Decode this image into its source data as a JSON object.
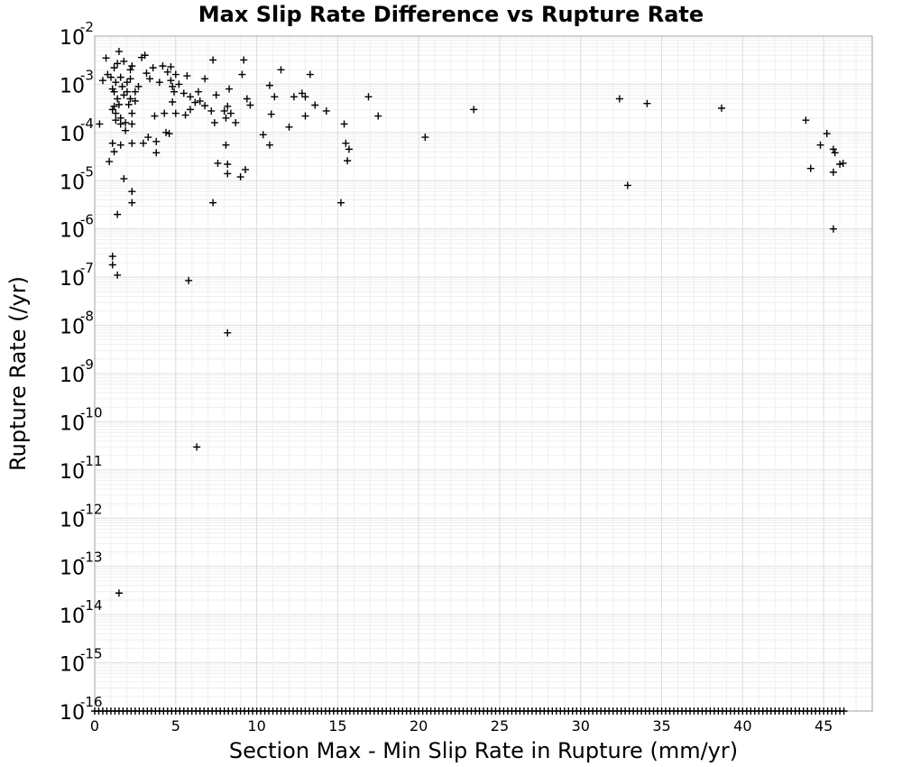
{
  "chart_data": {
    "type": "scatter",
    "title": "Max Slip Rate Difference vs Rupture Rate",
    "xlabel": "Section Max - Min Slip Rate in Rupture (mm/yr)",
    "ylabel": "Rupture Rate (/yr)",
    "xlim": [
      0,
      48
    ],
    "ylim": [
      1e-16,
      0.01
    ],
    "y_scale": "log",
    "grid": true,
    "x_ticks": [
      "0",
      "5",
      "10",
      "15",
      "20",
      "25",
      "30",
      "35",
      "40",
      "45"
    ],
    "y_ticks": [
      {
        "base": "10",
        "exp": "-2"
      },
      {
        "base": "10",
        "exp": "-3"
      },
      {
        "base": "10",
        "exp": "-4"
      },
      {
        "base": "10",
        "exp": "-5"
      },
      {
        "base": "10",
        "exp": "-6"
      },
      {
        "base": "10",
        "exp": "-7"
      },
      {
        "base": "10",
        "exp": "-8"
      },
      {
        "base": "10",
        "exp": "-9"
      },
      {
        "base": "10",
        "exp": "-10"
      },
      {
        "base": "10",
        "exp": "-11"
      },
      {
        "base": "10",
        "exp": "-12"
      },
      {
        "base": "10",
        "exp": "-13"
      },
      {
        "base": "10",
        "exp": "-14"
      },
      {
        "base": "10",
        "exp": "-15"
      },
      {
        "base": "10",
        "exp": "-16"
      }
    ],
    "marker": "plus",
    "color": "#000000",
    "points": [
      [
        0.3,
        0.00015
      ],
      [
        0.5,
        0.0012
      ],
      [
        0.7,
        0.0035
      ],
      [
        0.8,
        0.0016
      ],
      [
        0.9,
        2.5e-05
      ],
      [
        1.0,
        0.0014
      ],
      [
        1.1,
        0.0008
      ],
      [
        1.1,
        0.0003
      ],
      [
        1.1,
        6e-05
      ],
      [
        1.2,
        0.0022
      ],
      [
        1.2,
        0.0007
      ],
      [
        1.2,
        0.00035
      ],
      [
        1.2,
        4e-05
      ],
      [
        1.3,
        0.0011
      ],
      [
        1.3,
        0.00025
      ],
      [
        1.3,
        0.00018
      ],
      [
        1.4,
        0.0005
      ],
      [
        1.4,
        0.0027
      ],
      [
        1.5,
        0.0048
      ],
      [
        1.5,
        0.00038
      ],
      [
        1.6,
        0.0014
      ],
      [
        1.6,
        0.0002
      ],
      [
        1.6,
        0.00015
      ],
      [
        1.6,
        5.5e-05
      ],
      [
        1.7,
        0.0009
      ],
      [
        1.8,
        0.003
      ],
      [
        1.8,
        0.0006
      ],
      [
        1.9,
        0.00016
      ],
      [
        1.9,
        0.00011
      ],
      [
        2.0,
        0.0011
      ],
      [
        2.0,
        0.0007
      ],
      [
        2.1,
        0.00038
      ],
      [
        2.2,
        0.002
      ],
      [
        2.2,
        0.0013
      ],
      [
        2.2,
        0.0005
      ],
      [
        2.3,
        0.0024
      ],
      [
        2.3,
        0.00025
      ],
      [
        2.3,
        0.00015
      ],
      [
        2.3,
        6e-05
      ],
      [
        2.5,
        0.0007
      ],
      [
        2.5,
        0.00045
      ],
      [
        2.7,
        0.0009
      ],
      [
        2.9,
        0.0036
      ],
      [
        3.0,
        6e-05
      ],
      [
        3.1,
        0.004
      ],
      [
        3.2,
        0.0017
      ],
      [
        3.3,
        8e-05
      ],
      [
        3.4,
        0.0013
      ],
      [
        3.6,
        0.0022
      ],
      [
        3.7,
        0.00022
      ],
      [
        3.8,
        6.5e-05
      ],
      [
        3.8,
        3.8e-05
      ],
      [
        4.0,
        0.0011
      ],
      [
        4.2,
        0.0024
      ],
      [
        4.3,
        0.00025
      ],
      [
        4.4,
        0.0001
      ],
      [
        4.5,
        0.0018
      ],
      [
        4.6,
        9.5e-05
      ],
      [
        4.7,
        0.0023
      ],
      [
        4.7,
        0.0012
      ],
      [
        4.8,
        0.0009
      ],
      [
        4.8,
        0.00043
      ],
      [
        4.9,
        0.0007
      ],
      [
        5.0,
        0.00025
      ],
      [
        5.0,
        0.0016
      ],
      [
        5.2,
        0.001
      ],
      [
        5.5,
        0.00065
      ],
      [
        5.6,
        0.00023
      ],
      [
        5.7,
        0.0015
      ],
      [
        5.9,
        0.00055
      ],
      [
        5.9,
        0.0003
      ],
      [
        6.2,
        0.00042
      ],
      [
        6.4,
        0.0007
      ],
      [
        6.5,
        0.00045
      ],
      [
        6.8,
        0.00036
      ],
      [
        6.8,
        0.0013
      ],
      [
        7.2,
        0.00028
      ],
      [
        7.3,
        0.0032
      ],
      [
        7.4,
        0.00016
      ],
      [
        7.5,
        0.0006
      ],
      [
        7.6,
        2.3e-05
      ],
      [
        8.0,
        0.00028
      ],
      [
        8.1,
        5.5e-05
      ],
      [
        8.1,
        0.0002
      ],
      [
        8.2,
        0.00035
      ],
      [
        8.2,
        2.2e-05
      ],
      [
        8.2,
        1.4e-05
      ],
      [
        8.3,
        0.0008
      ],
      [
        8.4,
        0.00025
      ],
      [
        8.7,
        0.00016
      ],
      [
        9.0,
        1.2e-05
      ],
      [
        9.1,
        0.0016
      ],
      [
        9.2,
        0.0032
      ],
      [
        9.3,
        1.7e-05
      ],
      [
        9.4,
        0.0005
      ],
      [
        9.6,
        0.00037
      ],
      [
        10.4,
        9e-05
      ],
      [
        10.8,
        0.00095
      ],
      [
        10.8,
        5.5e-05
      ],
      [
        10.9,
        0.00024
      ],
      [
        11.1,
        0.00055
      ],
      [
        11.5,
        0.002
      ],
      [
        12.0,
        0.00013
      ],
      [
        12.3,
        0.00055
      ],
      [
        12.8,
        0.00065
      ],
      [
        13.0,
        0.00055
      ],
      [
        13.0,
        0.00022
      ],
      [
        13.3,
        0.0016
      ],
      [
        13.6,
        0.00037
      ],
      [
        14.3,
        0.00028
      ],
      [
        15.4,
        0.00015
      ],
      [
        15.5,
        6e-05
      ],
      [
        15.6,
        2.6e-05
      ],
      [
        15.7,
        4.5e-05
      ],
      [
        16.9,
        0.00055
      ],
      [
        17.5,
        0.00022
      ],
      [
        20.4,
        8e-05
      ],
      [
        23.4,
        0.0003
      ],
      [
        32.4,
        0.0005
      ],
      [
        34.1,
        0.0004
      ],
      [
        38.7,
        0.00032
      ],
      [
        43.9,
        0.00018
      ],
      [
        44.2,
        1.8e-05
      ],
      [
        44.8,
        5.5e-05
      ],
      [
        45.2,
        9.5e-05
      ],
      [
        45.6,
        4.5e-05
      ],
      [
        45.7,
        3.8e-05
      ],
      [
        45.6,
        1.5e-05
      ],
      [
        46.0,
        2.2e-05
      ],
      [
        46.2,
        2.3e-05
      ],
      [
        7.3,
        3.5e-06
      ],
      [
        15.2,
        3.5e-06
      ],
      [
        32.9,
        8e-06
      ],
      [
        45.6,
        1e-06
      ],
      [
        1.4,
        2e-06
      ],
      [
        2.3,
        6e-06
      ],
      [
        2.3,
        3.5e-06
      ],
      [
        1.8,
        1.1e-05
      ],
      [
        1.1,
        2.7e-07
      ],
      [
        1.1,
        1.8e-07
      ],
      [
        1.4,
        1.1e-07
      ],
      [
        5.8,
        8.5e-08
      ],
      [
        8.2,
        7e-09
      ],
      [
        6.3,
        3e-11
      ],
      [
        1.5,
        2.8e-14
      ]
    ],
    "floor_value": 1e-16,
    "floor_x_range": [
      0,
      46.3
    ]
  }
}
